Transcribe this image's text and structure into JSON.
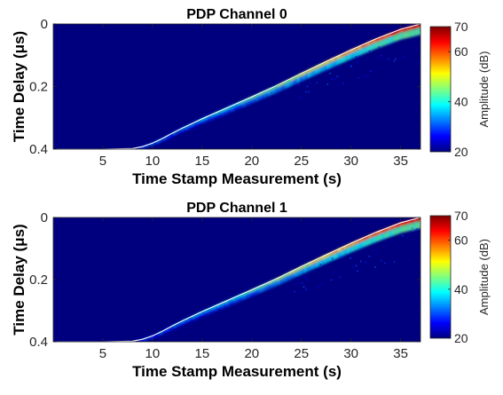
{
  "chart_data": [
    {
      "type": "heatmap",
      "title": "PDP Channel 0",
      "xlabel": "Time Stamp Measurement (s)",
      "ylabel": "Time Delay (μs)",
      "xlim": [
        0,
        37
      ],
      "ylim": [
        0,
        0.4
      ],
      "y_reversed": true,
      "xticks": [
        5,
        10,
        15,
        20,
        25,
        30,
        35
      ],
      "yticks": [
        0,
        0.2,
        0.4
      ],
      "colorbar": {
        "label": "Amplitude (dB)",
        "range": [
          20,
          70
        ],
        "ticks": [
          20,
          40,
          60,
          70
        ],
        "colormap": "jet"
      },
      "trajectory": {
        "color": "#ffffff",
        "x": [
          0,
          5,
          8,
          9,
          10,
          11,
          12,
          13,
          14,
          15,
          17.5,
          20,
          22.5,
          25,
          27.5,
          30,
          32.5,
          35,
          37
        ],
        "y": [
          0.4,
          0.4,
          0.398,
          0.392,
          0.381,
          0.366,
          0.349,
          0.333,
          0.318,
          0.303,
          0.268,
          0.233,
          0.197,
          0.158,
          0.12,
          0.083,
          0.048,
          0.017,
          0.0
        ]
      },
      "background_color": "#00007f"
    },
    {
      "type": "heatmap",
      "title": "PDP Channel 1",
      "xlabel": "Time Stamp Measurement (s)",
      "ylabel": "Time Delay (μs)",
      "xlim": [
        0,
        37
      ],
      "ylim": [
        0,
        0.4
      ],
      "y_reversed": true,
      "xticks": [
        5,
        10,
        15,
        20,
        25,
        30,
        35
      ],
      "yticks": [
        0,
        0.2,
        0.4
      ],
      "colorbar": {
        "label": "Amplitude (dB)",
        "range": [
          20,
          70
        ],
        "ticks": [
          20,
          40,
          60,
          70
        ],
        "colormap": "jet"
      },
      "trajectory": {
        "color": "#ffffff",
        "x": [
          0,
          5,
          8,
          9,
          10,
          11,
          12,
          13,
          14,
          15,
          17.5,
          20,
          22.5,
          25,
          27.5,
          30,
          32.5,
          35,
          37
        ],
        "y": [
          0.4,
          0.4,
          0.398,
          0.392,
          0.381,
          0.366,
          0.349,
          0.333,
          0.318,
          0.303,
          0.268,
          0.233,
          0.197,
          0.158,
          0.12,
          0.083,
          0.048,
          0.017,
          0.0
        ]
      },
      "background_color": "#00007f"
    }
  ]
}
